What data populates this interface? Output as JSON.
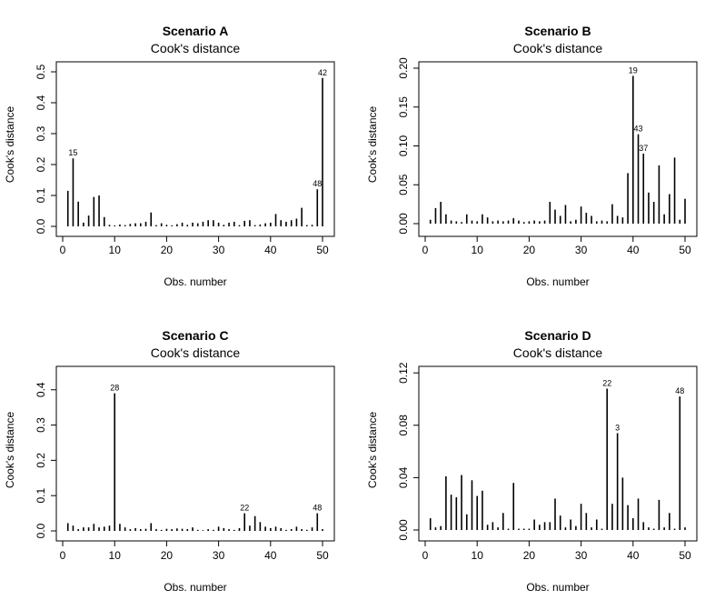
{
  "chart_data": [
    {
      "type": "bar",
      "title": "Scenario A",
      "subtitle": "Cook's distance",
      "xlabel": "Obs. number",
      "ylabel": "Cook's distance",
      "xlim": [
        0,
        50
      ],
      "ylim": [
        0,
        0.5
      ],
      "xticks": [
        0,
        10,
        20,
        30,
        40,
        50
      ],
      "yticks": [
        0.0,
        0.1,
        0.2,
        0.3,
        0.4,
        0.5
      ],
      "ytick_labels": [
        "0.0",
        "0.1",
        "0.2",
        "0.3",
        "0.4",
        "0.5"
      ],
      "x": [
        1,
        2,
        3,
        4,
        5,
        6,
        7,
        8,
        9,
        10,
        11,
        12,
        13,
        14,
        15,
        16,
        17,
        18,
        19,
        20,
        21,
        22,
        23,
        24,
        25,
        26,
        27,
        28,
        29,
        30,
        31,
        32,
        33,
        34,
        35,
        36,
        37,
        38,
        39,
        40,
        41,
        42,
        43,
        44,
        45,
        46,
        47,
        48,
        49,
        50
      ],
      "values": [
        0.115,
        0.22,
        0.08,
        0.012,
        0.035,
        0.095,
        0.1,
        0.03,
        0.005,
        0.003,
        0.006,
        0.004,
        0.008,
        0.01,
        0.01,
        0.015,
        0.045,
        0.004,
        0.01,
        0.005,
        0.003,
        0.007,
        0.012,
        0.005,
        0.012,
        0.01,
        0.015,
        0.02,
        0.02,
        0.012,
        0.005,
        0.012,
        0.015,
        0.004,
        0.018,
        0.02,
        0.004,
        0.006,
        0.01,
        0.012,
        0.04,
        0.02,
        0.015,
        0.02,
        0.025,
        0.06,
        0.004,
        0.005,
        0.12,
        0.48
      ],
      "point_labels": [
        {
          "x": 2,
          "text": "15"
        },
        {
          "x": 49,
          "text": "48"
        },
        {
          "x": 50,
          "text": "42"
        }
      ]
    },
    {
      "type": "bar",
      "title": "Scenario B",
      "subtitle": "Cook's distance",
      "xlabel": "Obs. number",
      "ylabel": "Cook's distance",
      "xlim": [
        0,
        50
      ],
      "ylim": [
        0,
        0.2
      ],
      "xticks": [
        0,
        10,
        20,
        30,
        40,
        50
      ],
      "yticks": [
        0.0,
        0.05,
        0.1,
        0.15,
        0.2
      ],
      "ytick_labels": [
        "0.00",
        "0.05",
        "0.10",
        "0.15",
        "0.20"
      ],
      "x": [
        1,
        2,
        3,
        4,
        5,
        6,
        7,
        8,
        9,
        10,
        11,
        12,
        13,
        14,
        15,
        16,
        17,
        18,
        19,
        20,
        21,
        22,
        23,
        24,
        25,
        26,
        27,
        28,
        29,
        30,
        31,
        32,
        33,
        34,
        35,
        36,
        37,
        38,
        39,
        40,
        41,
        42,
        43,
        44,
        45,
        46,
        47,
        48,
        49,
        50
      ],
      "values": [
        0.005,
        0.02,
        0.028,
        0.012,
        0.004,
        0.003,
        0.002,
        0.012,
        0.004,
        0.003,
        0.012,
        0.008,
        0.003,
        0.004,
        0.003,
        0.004,
        0.007,
        0.004,
        0.002,
        0.003,
        0.004,
        0.003,
        0.004,
        0.028,
        0.018,
        0.01,
        0.024,
        0.003,
        0.005,
        0.022,
        0.014,
        0.01,
        0.003,
        0.004,
        0.003,
        0.025,
        0.01,
        0.008,
        0.065,
        0.19,
        0.115,
        0.09,
        0.04,
        0.028,
        0.075,
        0.012,
        0.038,
        0.085,
        0.005,
        0.032
      ],
      "point_labels": [
        {
          "x": 40,
          "text": "19"
        },
        {
          "x": 41,
          "text": "43"
        },
        {
          "x": 42,
          "text": "37"
        }
      ]
    },
    {
      "type": "bar",
      "title": "Scenario C",
      "subtitle": "Cook's distance",
      "xlabel": "Obs. number",
      "ylabel": "Cook's distance",
      "xlim": [
        0,
        50
      ],
      "ylim": [
        0,
        0.42
      ],
      "xticks": [
        0,
        10,
        20,
        30,
        40,
        50
      ],
      "yticks": [
        0.0,
        0.1,
        0.2,
        0.3,
        0.4
      ],
      "ytick_labels": [
        "0.0",
        "0.1",
        "0.2",
        "0.3",
        "0.4"
      ],
      "x": [
        1,
        2,
        3,
        4,
        5,
        6,
        7,
        8,
        9,
        10,
        11,
        12,
        13,
        14,
        15,
        16,
        17,
        18,
        19,
        20,
        21,
        22,
        23,
        24,
        25,
        26,
        27,
        28,
        29,
        30,
        31,
        32,
        33,
        34,
        35,
        36,
        37,
        38,
        39,
        40,
        41,
        42,
        43,
        44,
        45,
        46,
        47,
        48,
        49,
        50
      ],
      "values": [
        0.022,
        0.015,
        0.005,
        0.01,
        0.01,
        0.02,
        0.01,
        0.012,
        0.015,
        0.39,
        0.02,
        0.01,
        0.005,
        0.008,
        0.005,
        0.006,
        0.022,
        0.005,
        0.003,
        0.006,
        0.005,
        0.007,
        0.006,
        0.005,
        0.01,
        0.003,
        0.002,
        0.005,
        0.003,
        0.012,
        0.008,
        0.005,
        0.003,
        0.008,
        0.05,
        0.015,
        0.042,
        0.025,
        0.012,
        0.008,
        0.012,
        0.008,
        0.003,
        0.005,
        0.012,
        0.005,
        0.003,
        0.01,
        0.05,
        0.005
      ],
      "point_labels": [
        {
          "x": 10,
          "text": "28"
        },
        {
          "x": 35,
          "text": "22"
        },
        {
          "x": 49,
          "text": "48"
        }
      ]
    },
    {
      "type": "bar",
      "title": "Scenario D",
      "subtitle": "Cook's distance",
      "xlabel": "Obs. number",
      "ylabel": "Cook's distance",
      "xlim": [
        0,
        50
      ],
      "ylim": [
        0,
        0.125
      ],
      "xticks": [
        0,
        10,
        20,
        30,
        40,
        50
      ],
      "yticks": [
        0.0,
        0.04,
        0.08,
        0.12
      ],
      "ytick_labels": [
        "0.00",
        "0.04",
        "0.08",
        "0.12"
      ],
      "x": [
        1,
        2,
        3,
        4,
        5,
        6,
        7,
        8,
        9,
        10,
        11,
        12,
        13,
        14,
        15,
        16,
        17,
        18,
        19,
        20,
        21,
        22,
        23,
        24,
        25,
        26,
        27,
        28,
        29,
        30,
        31,
        32,
        33,
        34,
        35,
        36,
        37,
        38,
        39,
        40,
        41,
        42,
        43,
        44,
        45,
        46,
        47,
        48,
        49,
        50
      ],
      "values": [
        0.009,
        0.002,
        0.003,
        0.041,
        0.027,
        0.025,
        0.042,
        0.012,
        0.038,
        0.026,
        0.03,
        0.004,
        0.006,
        0.002,
        0.013,
        0.001,
        0.036,
        0.001,
        0.001,
        0.001,
        0.008,
        0.004,
        0.006,
        0.006,
        0.024,
        0.011,
        0.002,
        0.008,
        0.003,
        0.02,
        0.013,
        0.002,
        0.008,
        0.001,
        0.108,
        0.02,
        0.074,
        0.04,
        0.019,
        0.009,
        0.024,
        0.006,
        0.002,
        0.001,
        0.023,
        0.002,
        0.013,
        0.001,
        0.102,
        0.002
      ],
      "point_labels": [
        {
          "x": 35,
          "text": "22"
        },
        {
          "x": 37,
          "text": "3"
        },
        {
          "x": 49,
          "text": "48"
        }
      ]
    }
  ]
}
